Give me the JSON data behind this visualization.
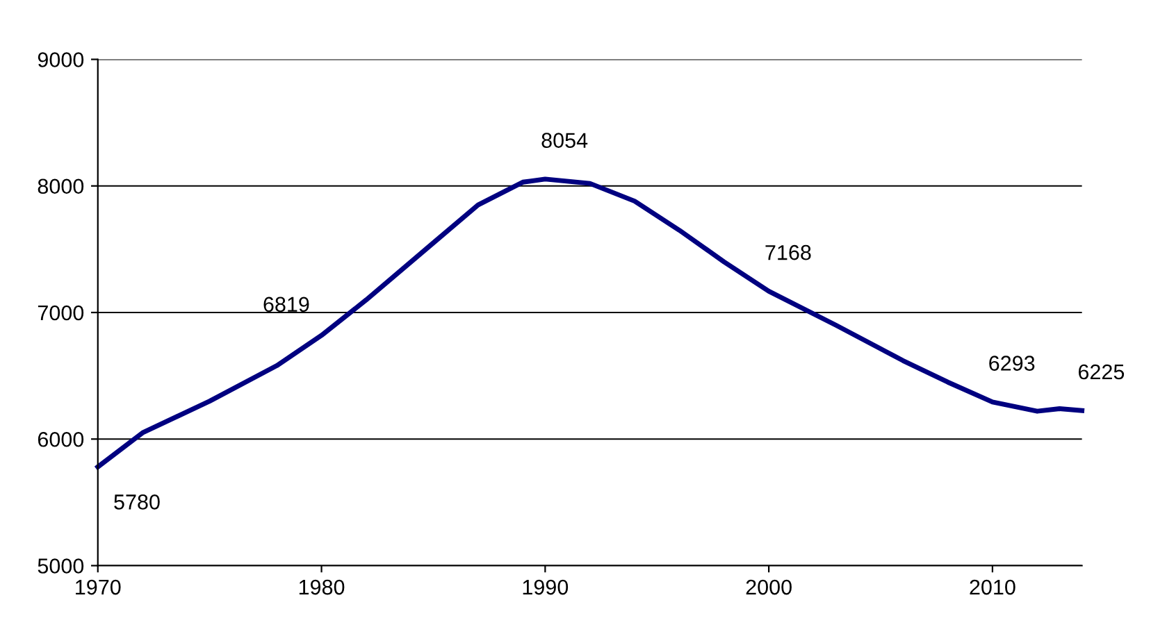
{
  "chart_data": {
    "type": "line",
    "x": [
      1970,
      1972,
      1975,
      1978,
      1980,
      1982,
      1985,
      1987,
      1989,
      1990,
      1992,
      1994,
      1996,
      1998,
      2000,
      2003,
      2006,
      2008,
      2010,
      2012,
      2013,
      2014
    ],
    "series": [
      {
        "color": "#000080",
        "values": [
          5780,
          6050,
          6300,
          6580,
          6819,
          7100,
          7550,
          7850,
          8030,
          8054,
          8020,
          7880,
          7650,
          7400,
          7168,
          6900,
          6620,
          6450,
          6293,
          6220,
          6240,
          6225
        ],
        "value_labels": [
          "5780",
          null,
          null,
          null,
          "6819",
          null,
          null,
          null,
          null,
          "8054",
          null,
          null,
          null,
          null,
          "7168",
          null,
          null,
          null,
          "6293",
          null,
          null,
          "6225"
        ]
      }
    ],
    "xlim": [
      1970,
      2014
    ],
    "xticks": [
      1970,
      1980,
      1990,
      2000,
      2010
    ],
    "ylim": [
      5000,
      9000
    ],
    "yticks": [
      5000,
      6000,
      7000,
      8000,
      9000
    ],
    "grid": "y",
    "legend": false,
    "marker": "none",
    "line_style": "solid"
  }
}
